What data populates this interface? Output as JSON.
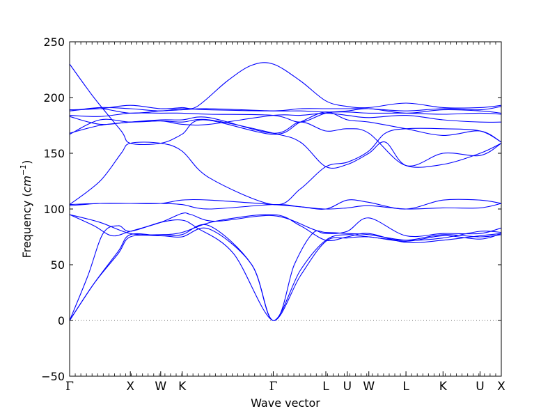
{
  "chart_data": {
    "type": "line",
    "title": "",
    "xlabel": "Wave vector",
    "ylabel": "Frequency (cm⁻¹)",
    "ylabel_base": "Frequency (",
    "ylabel_unit": "cm",
    "ylabel_exp": "−1",
    "ylabel_close": ")",
    "ylim": [
      -50,
      250
    ],
    "yticks": [
      -50,
      0,
      50,
      100,
      150,
      200,
      250
    ],
    "ytick_labels": [
      "−50",
      "0",
      "50",
      "100",
      "150",
      "200",
      "250"
    ],
    "grid": false,
    "legend": "none",
    "line_color": "#0000ff",
    "zero_line_color": "#666666",
    "zero_line_style": "dotted",
    "symmetry_points": [
      "Γ",
      "X",
      "W",
      "K",
      "Γ",
      "L",
      "U",
      "W",
      "L",
      "K",
      "U",
      "X"
    ],
    "symmetry_positions": [
      0,
      1,
      1.5,
      1.854,
      3.354,
      4.22,
      4.574,
      4.928,
      5.54,
      6.15,
      6.76,
      7.11
    ],
    "series": [
      {
        "points": [
          [
            0,
            0
          ],
          [
            0.4,
            33
          ],
          [
            0.8,
            60
          ],
          [
            1,
            75
          ],
          [
            1.5,
            76
          ],
          [
            1.85,
            75
          ],
          [
            2.3,
            82
          ],
          [
            3,
            50
          ],
          [
            3.354,
            0
          ],
          [
            3.8,
            40
          ],
          [
            4.22,
            71
          ],
          [
            4.574,
            74
          ],
          [
            4.928,
            75
          ],
          [
            5.54,
            71
          ],
          [
            6.15,
            76
          ],
          [
            6.76,
            73
          ],
          [
            7.11,
            78
          ]
        ]
      },
      {
        "points": [
          [
            0,
            0
          ],
          [
            0.4,
            33
          ],
          [
            0.8,
            62
          ],
          [
            1,
            77
          ],
          [
            1.5,
            76
          ],
          [
            1.85,
            77
          ],
          [
            2.3,
            85
          ],
          [
            3,
            50
          ],
          [
            3.354,
            0
          ],
          [
            3.8,
            45
          ],
          [
            4.22,
            72
          ],
          [
            4.574,
            77
          ],
          [
            4.928,
            75
          ],
          [
            5.54,
            72
          ],
          [
            6.15,
            77
          ],
          [
            6.76,
            75
          ],
          [
            7.11,
            77
          ]
        ]
      },
      {
        "points": [
          [
            0,
            0
          ],
          [
            0.3,
            40
          ],
          [
            0.55,
            78
          ],
          [
            0.8,
            85
          ],
          [
            1,
            80
          ],
          [
            1.5,
            88
          ],
          [
            1.85,
            90
          ],
          [
            2.1,
            83
          ],
          [
            2.7,
            60
          ],
          [
            3.354,
            0
          ],
          [
            3.7,
            50
          ],
          [
            4.0,
            78
          ],
          [
            4.22,
            79
          ],
          [
            4.574,
            78
          ],
          [
            4.928,
            77
          ],
          [
            5.54,
            72
          ],
          [
            6.15,
            74
          ],
          [
            6.76,
            80
          ],
          [
            7.11,
            79
          ]
        ]
      },
      {
        "points": [
          [
            0,
            95
          ],
          [
            0.4,
            85
          ],
          [
            0.7,
            76
          ],
          [
            1,
            80
          ],
          [
            1.5,
            88
          ],
          [
            1.85,
            96
          ],
          [
            2.0,
            95
          ],
          [
            2.4,
            89
          ],
          [
            3.354,
            94
          ],
          [
            4.0,
            82
          ],
          [
            4.22,
            78
          ],
          [
            4.574,
            80
          ],
          [
            4.928,
            92
          ],
          [
            5.54,
            76
          ],
          [
            6.15,
            78
          ],
          [
            6.76,
            78
          ],
          [
            7.11,
            83
          ]
        ]
      },
      {
        "points": [
          [
            0,
            95
          ],
          [
            0.5,
            88
          ],
          [
            1,
            78
          ],
          [
            1.5,
            77
          ],
          [
            1.85,
            79
          ],
          [
            2.4,
            89
          ],
          [
            3.354,
            95
          ],
          [
            3.8,
            85
          ],
          [
            4.22,
            72
          ],
          [
            4.574,
            75
          ],
          [
            4.928,
            78
          ],
          [
            5.54,
            70
          ],
          [
            6.15,
            72
          ],
          [
            6.76,
            76
          ],
          [
            7.11,
            78
          ]
        ]
      },
      {
        "points": [
          [
            0,
            103
          ],
          [
            0.5,
            105
          ],
          [
            1,
            105
          ],
          [
            1.5,
            105
          ],
          [
            1.85,
            104
          ],
          [
            2.3,
            100
          ],
          [
            3.354,
            104
          ],
          [
            3.8,
            102
          ],
          [
            4.22,
            100
          ],
          [
            4.574,
            101
          ],
          [
            4.928,
            103
          ],
          [
            5.54,
            100
          ],
          [
            6.15,
            101
          ],
          [
            6.76,
            101
          ],
          [
            7.11,
            105
          ]
        ]
      },
      {
        "points": [
          [
            0,
            104
          ],
          [
            0.5,
            105
          ],
          [
            1,
            105
          ],
          [
            1.5,
            105
          ],
          [
            1.85,
            108
          ],
          [
            2.3,
            108
          ],
          [
            3.354,
            104
          ],
          [
            3.8,
            102
          ],
          [
            4.22,
            100
          ],
          [
            4.574,
            108
          ],
          [
            4.928,
            106
          ],
          [
            5.54,
            100
          ],
          [
            6.15,
            108
          ],
          [
            6.76,
            108
          ],
          [
            7.11,
            105
          ]
        ]
      },
      {
        "points": [
          [
            0,
            104
          ],
          [
            0.5,
            125
          ],
          [
            0.85,
            150
          ],
          [
            1,
            159
          ],
          [
            1.5,
            159
          ],
          [
            1.85,
            152
          ],
          [
            2.3,
            128
          ],
          [
            3.354,
            104
          ],
          [
            3.8,
            118
          ],
          [
            4.22,
            138
          ],
          [
            4.574,
            142
          ],
          [
            4.928,
            152
          ],
          [
            5.2,
            168
          ],
          [
            5.54,
            172
          ],
          [
            6.15,
            172
          ],
          [
            6.76,
            170
          ],
          [
            7.11,
            160
          ]
        ]
      },
      {
        "points": [
          [
            0,
            230
          ],
          [
            0.4,
            200
          ],
          [
            0.85,
            170
          ],
          [
            1,
            159
          ],
          [
            1.5,
            159
          ],
          [
            1.85,
            167
          ],
          [
            2.2,
            180
          ],
          [
            3.354,
            167
          ],
          [
            3.8,
            178
          ],
          [
            4.22,
            187
          ],
          [
            4.574,
            180
          ],
          [
            4.928,
            178
          ],
          [
            5.54,
            172
          ],
          [
            6.15,
            166
          ],
          [
            6.76,
            170
          ],
          [
            7.11,
            160
          ]
        ]
      },
      {
        "points": [
          [
            0,
            167
          ],
          [
            0.5,
            180
          ],
          [
            1,
            178
          ],
          [
            1.5,
            179
          ],
          [
            1.85,
            178
          ],
          [
            2.3,
            180
          ],
          [
            3.354,
            168
          ],
          [
            3.8,
            160
          ],
          [
            4.22,
            138
          ],
          [
            4.574,
            140
          ],
          [
            4.928,
            150
          ],
          [
            5.2,
            160
          ],
          [
            5.54,
            139
          ],
          [
            6.15,
            140
          ],
          [
            6.76,
            150
          ],
          [
            7.11,
            159
          ]
        ]
      },
      {
        "points": [
          [
            0,
            168
          ],
          [
            0.5,
            175
          ],
          [
            1,
            178
          ],
          [
            1.5,
            180
          ],
          [
            1.85,
            180
          ],
          [
            2.3,
            182
          ],
          [
            3.354,
            168
          ],
          [
            3.8,
            178
          ],
          [
            4.22,
            170
          ],
          [
            4.574,
            172
          ],
          [
            4.928,
            168
          ],
          [
            5.54,
            139
          ],
          [
            6.15,
            150
          ],
          [
            6.76,
            148
          ],
          [
            7.11,
            159
          ]
        ]
      },
      {
        "points": [
          [
            0,
            183
          ],
          [
            0.5,
            176
          ],
          [
            1,
            178
          ],
          [
            1.5,
            179
          ],
          [
            1.85,
            176
          ],
          [
            2.3,
            176
          ],
          [
            3.354,
            184
          ],
          [
            3.8,
            184
          ],
          [
            4.22,
            186
          ],
          [
            4.574,
            184
          ],
          [
            4.928,
            182
          ],
          [
            5.54,
            184
          ],
          [
            6.15,
            180
          ],
          [
            6.76,
            178
          ],
          [
            7.11,
            178
          ]
        ]
      },
      {
        "points": [
          [
            0,
            184
          ],
          [
            0.5,
            183
          ],
          [
            1,
            186
          ],
          [
            1.5,
            186
          ],
          [
            1.85,
            186
          ],
          [
            2.3,
            185
          ],
          [
            3.354,
            184
          ],
          [
            3.8,
            178
          ],
          [
            4.22,
            186
          ],
          [
            4.574,
            187
          ],
          [
            4.928,
            186
          ],
          [
            5.54,
            186
          ],
          [
            6.15,
            185
          ],
          [
            6.76,
            186
          ],
          [
            7.11,
            185
          ]
        ]
      },
      {
        "points": [
          [
            0,
            188
          ],
          [
            0.5,
            190
          ],
          [
            1,
            186
          ],
          [
            1.5,
            188
          ],
          [
            1.85,
            189
          ],
          [
            2.3,
            190
          ],
          [
            3.354,
            188
          ],
          [
            3.8,
            188
          ],
          [
            4.22,
            187
          ],
          [
            4.574,
            188
          ],
          [
            4.928,
            190
          ],
          [
            5.54,
            186
          ],
          [
            6.15,
            189
          ],
          [
            6.76,
            188
          ],
          [
            7.11,
            186
          ]
        ]
      },
      {
        "points": [
          [
            0,
            188
          ],
          [
            0.5,
            191
          ],
          [
            1,
            190
          ],
          [
            1.5,
            188
          ],
          [
            1.85,
            190
          ],
          [
            2.3,
            189
          ],
          [
            3.354,
            188
          ],
          [
            3.8,
            190
          ],
          [
            4.22,
            190
          ],
          [
            4.574,
            190
          ],
          [
            4.928,
            190
          ],
          [
            5.54,
            188
          ],
          [
            6.15,
            190
          ],
          [
            6.76,
            189
          ],
          [
            7.11,
            192
          ]
        ]
      },
      {
        "points": [
          [
            0,
            189
          ],
          [
            0.5,
            190
          ],
          [
            1,
            193
          ],
          [
            1.5,
            190
          ],
          [
            1.85,
            191
          ],
          [
            2.1,
            192
          ],
          [
            2.6,
            215
          ],
          [
            3.0,
            229
          ],
          [
            3.354,
            230
          ],
          [
            3.8,
            215
          ],
          [
            4.22,
            197
          ],
          [
            4.574,
            192
          ],
          [
            4.928,
            191
          ],
          [
            5.54,
            195
          ],
          [
            6.15,
            191
          ],
          [
            6.76,
            191
          ],
          [
            7.11,
            193
          ]
        ]
      }
    ]
  }
}
